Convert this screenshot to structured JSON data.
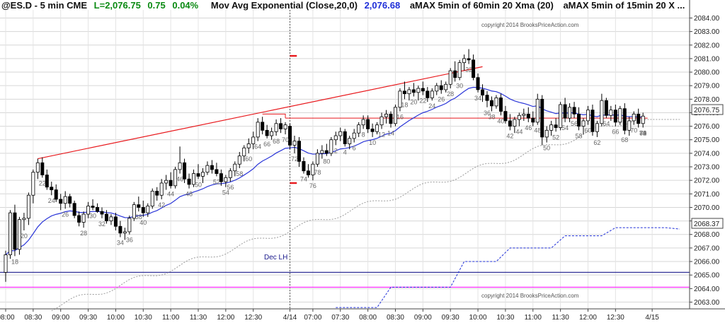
{
  "header": {
    "symbol": "@ES.D - 5 min  CME",
    "last": "L=2,076.75",
    "change": "0.75",
    "pct": "0.04%",
    "study1": "Mov Avg Exponential (Close,20,0)",
    "study1_value": "2,076.68",
    "study2": "aMAX 5min of 60min 20 Xma (20)",
    "study3": "aMAX 5min of 15min 20 X ..."
  },
  "copyright_top": "copyright 2014 BrooksPriceAction.com",
  "copyright_bottom": "copyright 2014 BrooksPriceAction.com",
  "annotation_dec_lh": "Dec LH",
  "price_tags": {
    "last": "2076.75",
    "htf": "2068.37"
  },
  "colors": {
    "ema": "#2b36d8",
    "trendline": "#e8181c",
    "dec_lh": "#1a1a8c",
    "magenta": "#ff33ff",
    "htf_dotted": "#9a9a9a",
    "htf_blue": "#1f2fd8",
    "bull": "#ffffff",
    "bear": "#000000",
    "accent_green": "#0a8a12",
    "accent_blue": "#1f2fd8"
  },
  "chart_data": {
    "type": "candlestick",
    "y_axis": {
      "range": [
        2062.5,
        2084.6
      ],
      "ticks": [
        "2063.00",
        "2064.00",
        "2065.00",
        "2066.00",
        "2067.00",
        "2068.00",
        "2069.00",
        "2070.00",
        "2071.00",
        "2072.00",
        "2073.00",
        "2074.00",
        "2075.00",
        "2076.00",
        "2077.00",
        "2078.00",
        "2079.00",
        "2080.00",
        "2081.00",
        "2082.00",
        "2083.00",
        "2084.00"
      ]
    },
    "x_axis": {
      "bar_range": [
        0,
        147
      ],
      "ticks": [
        {
          "bar": 0,
          "label": "08:00"
        },
        {
          "bar": 6,
          "label": "08:30"
        },
        {
          "bar": 12,
          "label": "09:00"
        },
        {
          "bar": 18,
          "label": "09:30"
        },
        {
          "bar": 24,
          "label": "10:00"
        },
        {
          "bar": 30,
          "label": "10:30"
        },
        {
          "bar": 36,
          "label": "11:00"
        },
        {
          "bar": 42,
          "label": "11:30"
        },
        {
          "bar": 48,
          "label": "12:00"
        },
        {
          "bar": 54,
          "label": "12:30"
        },
        {
          "bar": 62,
          "label": "4/14"
        },
        {
          "bar": 67,
          "label": "07:00"
        },
        {
          "bar": 73,
          "label": "07:30"
        },
        {
          "bar": 79,
          "label": "08:00"
        },
        {
          "bar": 85,
          "label": "08:30"
        },
        {
          "bar": 91,
          "label": "09:00"
        },
        {
          "bar": 97,
          "label": "09:30"
        },
        {
          "bar": 103,
          "label": "10:00"
        },
        {
          "bar": 109,
          "label": "10:30"
        },
        {
          "bar": 115,
          "label": "11:00"
        },
        {
          "bar": 121,
          "label": "11:30"
        },
        {
          "bar": 127,
          "label": "12:00"
        },
        {
          "bar": 133,
          "label": "12:30"
        },
        {
          "bar": 141,
          "label": "4/15"
        }
      ]
    },
    "session_break_bar": 62,
    "candles": [
      [
        2065.2,
        2066.8,
        2064.5,
        2066.5
      ],
      [
        2066.5,
        2069.8,
        2066.2,
        2069.6
      ],
      [
        2069.6,
        2070.2,
        2066.4,
        2066.9
      ],
      [
        2066.9,
        2069.3,
        2066.5,
        2069.1
      ],
      [
        2069.1,
        2069.6,
        2068.3,
        2069.2
      ],
      [
        2069.2,
        2071.1,
        2068.7,
        2070.9
      ],
      [
        2070.9,
        2072.8,
        2070.3,
        2072.6
      ],
      [
        2072.6,
        2073.6,
        2072.1,
        2073.3
      ],
      [
        2073.3,
        2073.7,
        2072.2,
        2072.4
      ],
      [
        2072.4,
        2072.8,
        2071.3,
        2071.5
      ],
      [
        2071.5,
        2071.9,
        2070.9,
        2071.3
      ],
      [
        2071.3,
        2071.7,
        2070.4,
        2070.6
      ],
      [
        2070.6,
        2071.0,
        2069.8,
        2070.3
      ],
      [
        2070.3,
        2071.2,
        2069.9,
        2070.8
      ],
      [
        2070.8,
        2071.0,
        2070.0,
        2070.3
      ],
      [
        2070.3,
        2070.5,
        2069.2,
        2069.4
      ],
      [
        2069.4,
        2069.7,
        2068.6,
        2068.9
      ],
      [
        2068.9,
        2069.7,
        2068.5,
        2069.5
      ],
      [
        2069.5,
        2070.4,
        2069.2,
        2070.1
      ],
      [
        2070.1,
        2070.6,
        2069.8,
        2070.0
      ],
      [
        2070.0,
        2070.3,
        2069.6,
        2069.7
      ],
      [
        2069.7,
        2070.0,
        2069.2,
        2069.5
      ],
      [
        2069.5,
        2069.8,
        2068.8,
        2069.0
      ],
      [
        2069.0,
        2069.5,
        2068.7,
        2069.3
      ],
      [
        2069.3,
        2069.6,
        2068.3,
        2068.6
      ],
      [
        2068.6,
        2069.0,
        2067.8,
        2068.1
      ],
      [
        2068.1,
        2068.5,
        2067.6,
        2068.2
      ],
      [
        2068.2,
        2069.4,
        2068.0,
        2069.2
      ],
      [
        2069.2,
        2070.4,
        2069.0,
        2070.2
      ],
      [
        2070.2,
        2070.8,
        2069.7,
        2070.0
      ],
      [
        2070.0,
        2070.5,
        2069.3,
        2069.6
      ],
      [
        2069.6,
        2070.3,
        2069.3,
        2070.1
      ],
      [
        2070.1,
        2071.4,
        2069.9,
        2071.2
      ],
      [
        2071.2,
        2071.5,
        2070.5,
        2070.9
      ],
      [
        2070.9,
        2072.1,
        2070.6,
        2071.8
      ],
      [
        2071.8,
        2072.4,
        2071.3,
        2072.0
      ],
      [
        2072.0,
        2072.6,
        2071.4,
        2071.6
      ],
      [
        2071.6,
        2073.0,
        2071.4,
        2072.8
      ],
      [
        2072.8,
        2074.5,
        2072.5,
        2073.3
      ],
      [
        2073.3,
        2073.6,
        2071.8,
        2072.1
      ],
      [
        2072.1,
        2072.5,
        2071.4,
        2071.7
      ],
      [
        2071.7,
        2072.8,
        2071.5,
        2072.5
      ],
      [
        2072.5,
        2073.2,
        2072.1,
        2072.3
      ],
      [
        2072.3,
        2072.9,
        2071.8,
        2072.6
      ],
      [
        2072.6,
        2073.4,
        2072.4,
        2073.1
      ],
      [
        2073.1,
        2073.5,
        2072.5,
        2072.8
      ],
      [
        2072.8,
        2073.3,
        2072.3,
        2072.5
      ],
      [
        2072.5,
        2072.8,
        2071.6,
        2071.9
      ],
      [
        2071.9,
        2072.4,
        2071.5,
        2072.2
      ],
      [
        2072.2,
        2072.9,
        2071.9,
        2072.7
      ],
      [
        2072.7,
        2073.4,
        2072.3,
        2073.2
      ],
      [
        2073.2,
        2074.1,
        2072.9,
        2073.8
      ],
      [
        2073.8,
        2074.6,
        2073.4,
        2074.4
      ],
      [
        2074.4,
        2075.1,
        2074.0,
        2074.7
      ],
      [
        2074.7,
        2075.6,
        2074.3,
        2075.2
      ],
      [
        2075.2,
        2076.6,
        2074.9,
        2076.3
      ],
      [
        2076.3,
        2076.7,
        2075.4,
        2075.7
      ],
      [
        2075.7,
        2076.1,
        2075.1,
        2075.3
      ],
      [
        2075.3,
        2075.9,
        2075.0,
        2075.6
      ],
      [
        2075.6,
        2076.5,
        2075.3,
        2076.2
      ],
      [
        2076.2,
        2076.6,
        2075.5,
        2075.8
      ],
      [
        2075.8,
        2076.3,
        2075.4,
        2076.1
      ],
      [
        2076.0,
        2076.2,
        2074.3,
        2074.6
      ],
      [
        2074.6,
        2075.3,
        2074.0,
        2074.9
      ],
      [
        2074.9,
        2075.2,
        2073.0,
        2073.4
      ],
      [
        2073.4,
        2073.7,
        2072.5,
        2072.7
      ],
      [
        2072.7,
        2073.2,
        2072.2,
        2072.4
      ],
      [
        2072.4,
        2073.4,
        2072.0,
        2073.2
      ],
      [
        2073.2,
        2074.3,
        2073.0,
        2074.0
      ],
      [
        2074.0,
        2074.6,
        2073.6,
        2074.2
      ],
      [
        2074.2,
        2074.7,
        2073.8,
        2074.0
      ],
      [
        2074.0,
        2075.2,
        2073.8,
        2075.0
      ],
      [
        2075.0,
        2075.6,
        2074.6,
        2075.3
      ],
      [
        2075.3,
        2075.9,
        2074.9,
        2075.6
      ],
      [
        2075.6,
        2075.8,
        2074.5,
        2074.7
      ],
      [
        2074.7,
        2075.3,
        2074.3,
        2075.1
      ],
      [
        2075.1,
        2075.8,
        2074.8,
        2075.5
      ],
      [
        2075.5,
        2076.3,
        2075.2,
        2076.1
      ],
      [
        2076.1,
        2076.8,
        2075.8,
        2076.5
      ],
      [
        2076.5,
        2076.8,
        2075.5,
        2075.8
      ],
      [
        2075.8,
        2076.2,
        2075.2,
        2075.6
      ],
      [
        2075.6,
        2076.3,
        2075.4,
        2076.1
      ],
      [
        2076.1,
        2077.0,
        2075.8,
        2076.7
      ],
      [
        2076.7,
        2077.2,
        2076.2,
        2076.9
      ],
      [
        2076.9,
        2077.1,
        2075.9,
        2076.2
      ],
      [
        2076.2,
        2077.6,
        2076.0,
        2077.4
      ],
      [
        2077.4,
        2078.8,
        2077.1,
        2078.6
      ],
      [
        2078.6,
        2079.3,
        2078.0,
        2078.4
      ],
      [
        2078.4,
        2078.9,
        2077.9,
        2078.7
      ],
      [
        2078.7,
        2079.2,
        2078.2,
        2078.5
      ],
      [
        2078.5,
        2079.0,
        2077.9,
        2078.8
      ],
      [
        2078.8,
        2079.3,
        2078.3,
        2078.6
      ],
      [
        2078.6,
        2078.9,
        2077.8,
        2078.1
      ],
      [
        2078.1,
        2078.8,
        2077.9,
        2078.6
      ],
      [
        2078.6,
        2079.2,
        2078.3,
        2079.0
      ],
      [
        2079.0,
        2079.4,
        2078.4,
        2078.7
      ],
      [
        2078.7,
        2079.3,
        2078.5,
        2079.1
      ],
      [
        2079.1,
        2080.3,
        2078.8,
        2080.1
      ],
      [
        2080.1,
        2080.8,
        2079.3,
        2079.6
      ],
      [
        2079.6,
        2080.9,
        2079.4,
        2080.7
      ],
      [
        2080.7,
        2081.3,
        2080.1,
        2081.0
      ],
      [
        2081.0,
        2081.7,
        2080.6,
        2080.9
      ],
      [
        2080.9,
        2081.3,
        2079.4,
        2079.6
      ],
      [
        2079.6,
        2079.9,
        2078.5,
        2078.7
      ],
      [
        2078.7,
        2079.1,
        2077.8,
        2078.3
      ],
      [
        2078.3,
        2078.6,
        2077.4,
        2077.9
      ],
      [
        2077.9,
        2078.2,
        2077.1,
        2077.5
      ],
      [
        2077.5,
        2078.3,
        2077.3,
        2078.1
      ],
      [
        2078.1,
        2078.4,
        2076.8,
        2077.1
      ],
      [
        2077.1,
        2077.5,
        2076.2,
        2076.4
      ],
      [
        2076.4,
        2076.9,
        2075.7,
        2076.0
      ],
      [
        2076.0,
        2076.7,
        2075.5,
        2076.5
      ],
      [
        2076.5,
        2077.0,
        2076.0,
        2076.8
      ],
      [
        2076.8,
        2077.3,
        2076.4,
        2076.9
      ],
      [
        2076.9,
        2077.4,
        2076.3,
        2076.6
      ],
      [
        2076.6,
        2077.1,
        2076.0,
        2076.3
      ],
      [
        2076.3,
        2078.4,
        2076.1,
        2078.0
      ],
      [
        2078.0,
        2078.3,
        2074.6,
        2075.2
      ],
      [
        2075.2,
        2076.0,
        2074.8,
        2075.7
      ],
      [
        2075.7,
        2076.4,
        2075.3,
        2076.1
      ],
      [
        2076.1,
        2076.6,
        2075.6,
        2075.9
      ],
      [
        2075.9,
        2077.8,
        2075.7,
        2077.6
      ],
      [
        2077.6,
        2078.1,
        2076.3,
        2076.6
      ],
      [
        2076.6,
        2077.7,
        2076.3,
        2077.4
      ],
      [
        2077.4,
        2077.8,
        2076.6,
        2076.9
      ],
      [
        2076.9,
        2077.4,
        2075.7,
        2076.0
      ],
      [
        2076.0,
        2076.6,
        2075.4,
        2076.4
      ],
      [
        2076.4,
        2077.5,
        2076.1,
        2077.2
      ],
      [
        2077.2,
        2077.6,
        2075.3,
        2075.6
      ],
      [
        2075.6,
        2076.4,
        2075.2,
        2076.2
      ],
      [
        2076.2,
        2078.4,
        2076.0,
        2077.9
      ],
      [
        2077.9,
        2078.1,
        2076.6,
        2076.8
      ],
      [
        2076.8,
        2077.5,
        2076.4,
        2077.2
      ],
      [
        2077.2,
        2077.6,
        2076.0,
        2076.3
      ],
      [
        2076.3,
        2077.5,
        2076.1,
        2077.3
      ],
      [
        2077.3,
        2077.7,
        2075.4,
        2075.7
      ],
      [
        2075.7,
        2076.7,
        2075.3,
        2076.4
      ],
      [
        2076.4,
        2077.1,
        2076.1,
        2076.9
      ],
      [
        2076.9,
        2077.3,
        2075.9,
        2076.2
      ],
      [
        2076.2,
        2077.0,
        2075.9,
        2076.75
      ]
    ],
    "bar_labels": [
      {
        "bar": 1,
        "text": "18"
      },
      {
        "bar": 2,
        "text": "20"
      },
      {
        "bar": 4,
        "text": "22"
      },
      {
        "bar": 5,
        "text": "24"
      },
      {
        "bar": 7,
        "text": "26"
      },
      {
        "bar": 9,
        "text": "28"
      },
      {
        "bar": 10,
        "text": "30"
      },
      {
        "bar": 11,
        "text": "32"
      },
      {
        "bar": 13,
        "text": "34"
      },
      {
        "bar": 14,
        "text": "36"
      },
      {
        "bar": 15,
        "text": "38"
      },
      {
        "bar": 16,
        "text": "40"
      },
      {
        "bar": 18,
        "text": "42"
      },
      {
        "bar": 19,
        "text": "44"
      },
      {
        "bar": 20,
        "text": "46"
      },
      {
        "bar": 21,
        "text": "48"
      },
      {
        "bar": 22,
        "text": "50"
      },
      {
        "bar": 24,
        "text": "52"
      },
      {
        "bar": 25,
        "text": "54"
      },
      {
        "bar": 26,
        "text": "56"
      },
      {
        "bar": 27,
        "text": "58"
      },
      {
        "bar": 28,
        "text": "60"
      },
      {
        "bar": 29,
        "text": "64"
      },
      {
        "bar": 30,
        "text": "66"
      },
      {
        "bar": 31,
        "text": "68"
      },
      {
        "bar": 32,
        "text": "70"
      },
      {
        "bar": 33,
        "text": "72"
      },
      {
        "bar": 34,
        "text": "74"
      },
      {
        "bar": 35,
        "text": "76"
      },
      {
        "bar": 36,
        "text": "78"
      },
      {
        "bar": 37,
        "text": "80"
      },
      {
        "bar": 38,
        "text": "2"
      },
      {
        "bar": 39,
        "text": "4"
      },
      {
        "bar": 40,
        "text": "6"
      },
      {
        "bar": 41,
        "text": "8"
      },
      {
        "bar": 42,
        "text": "10"
      },
      {
        "bar": 43,
        "text": "12"
      },
      {
        "bar": 44,
        "text": "14"
      },
      {
        "bar": 45,
        "text": "16"
      },
      {
        "bar": 46,
        "text": "18"
      },
      {
        "bar": 47,
        "text": "20"
      },
      {
        "bar": 48,
        "text": "22"
      },
      {
        "bar": 49,
        "text": "24"
      },
      {
        "bar": 50,
        "text": "26"
      },
      {
        "bar": 51,
        "text": "28"
      },
      {
        "bar": 52,
        "text": "30"
      },
      {
        "bar": 53,
        "text": "32"
      },
      {
        "bar": 54,
        "text": "34"
      },
      {
        "bar": 55,
        "text": "36"
      },
      {
        "bar": 56,
        "text": "38"
      },
      {
        "bar": 57,
        "text": "40"
      },
      {
        "bar": 58,
        "text": "42"
      },
      {
        "bar": 59,
        "text": "44"
      },
      {
        "bar": 60,
        "text": "46"
      },
      {
        "bar": 61,
        "text": "48"
      },
      {
        "bar": 62,
        "text": "50"
      },
      {
        "bar": 63,
        "text": "52"
      },
      {
        "bar": 64,
        "text": "54"
      },
      {
        "bar": 65,
        "text": "56"
      },
      {
        "bar": 66,
        "text": "58"
      },
      {
        "bar": 67,
        "text": "60"
      },
      {
        "bar": 68,
        "text": "62"
      },
      {
        "bar": 69,
        "text": "64"
      },
      {
        "bar": 70,
        "text": "66"
      },
      {
        "bar": 71,
        "text": "68"
      },
      {
        "bar": 72,
        "text": "70"
      },
      {
        "bar": 73,
        "text": "72"
      },
      {
        "bar": 74,
        "text": "74"
      },
      {
        "bar": 75,
        "text": "76"
      },
      {
        "bar": 76,
        "text": "78"
      },
      {
        "bar": 77,
        "text": "80"
      }
    ]
  }
}
